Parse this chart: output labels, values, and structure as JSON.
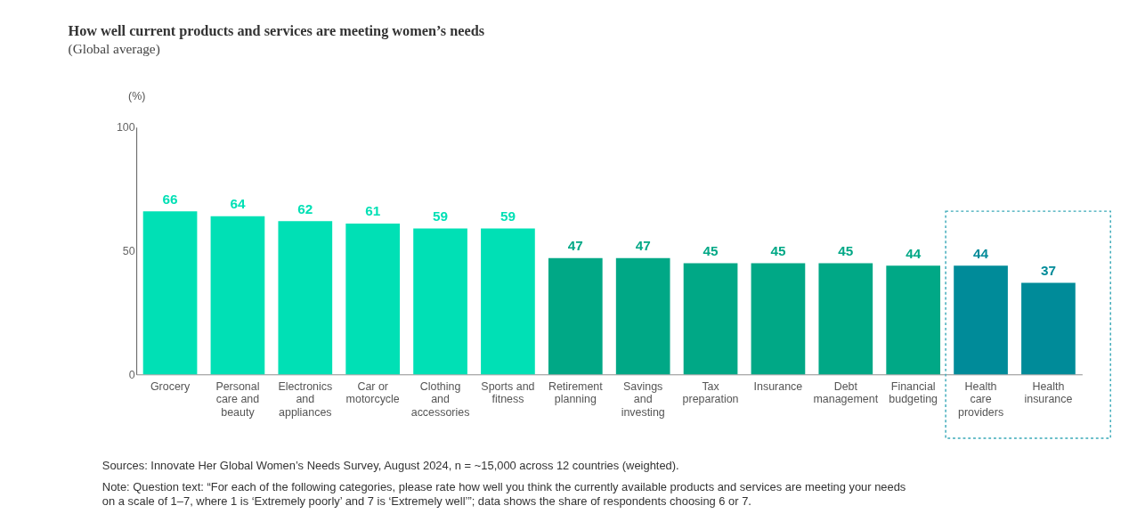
{
  "chart_data": {
    "type": "bar",
    "title": "How well current products and services are meeting women’s needs",
    "subtitle": "(Global average)",
    "ylabel": "(%)",
    "categories": [
      "Grocery",
      "Personal care and beauty",
      "Electronics and appliances",
      "Car or motorcycle",
      "Clothing and accessories",
      "Sports and fitness",
      "Retirement planning",
      "Savings and investing",
      "Tax preparation",
      "Insurance",
      "Debt management",
      "Financial budgeting",
      "Health care providers",
      "Health insurance"
    ],
    "values": [
      66,
      64,
      62,
      61,
      59,
      59,
      47,
      47,
      45,
      45,
      45,
      44,
      44,
      37
    ],
    "colors": [
      "#00e0b5",
      "#00e0b5",
      "#00e0b5",
      "#00e0b5",
      "#00e0b5",
      "#00e0b5",
      "#00a886",
      "#00a886",
      "#00a886",
      "#00a886",
      "#00a886",
      "#00a886",
      "#008b99",
      "#008b99"
    ],
    "ylim": [
      0,
      100
    ],
    "yticks": [
      0,
      50,
      100
    ],
    "grid": false,
    "data_labels": true,
    "annotations": [
      "Sources: Innovate Her Global Women’s Needs Survey, August 2024, n = ~15,000 across 12 countries (weighted).",
      "Note: Question text: “For each of the following categories, please rate how well you think the currently available products and services are meeting your needs on a scale of 1–7, where 1 is ‘Extremely poorly’ and 7 is ‘Extremely well’”; data shows the share of respondents choosing 6 or 7."
    ]
  }
}
